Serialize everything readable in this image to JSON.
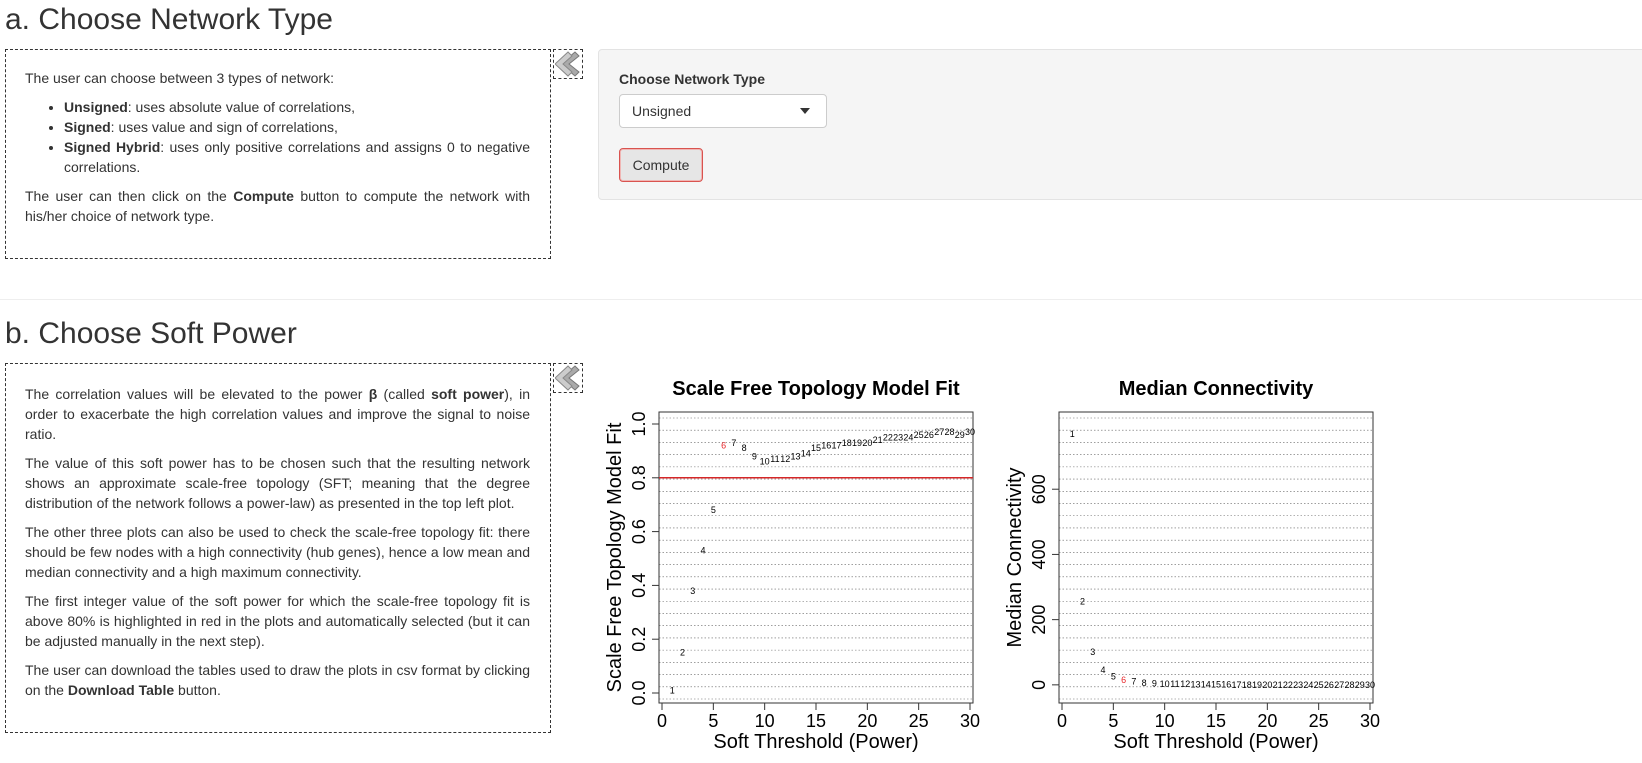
{
  "section_a": {
    "title": "a. Choose Network Type",
    "intro": "The user can choose between 3 types of network:",
    "bullets": [
      {
        "bold": "Unsigned",
        "text": ": uses absolute value of correlations,"
      },
      {
        "bold": "Signed",
        "text": ": uses value and sign of correlations,"
      },
      {
        "bold": "Signed Hybrid",
        "text": ": uses only positive correlations and assigns 0 to negative correlations."
      }
    ],
    "outro_pre": "The user can then click on the ",
    "outro_bold": "Compute",
    "outro_post": " button to compute the network with his/her choice of network type.",
    "control_label": "Choose Network Type",
    "select_value": "Unsigned",
    "compute_label": "Compute"
  },
  "section_b": {
    "title": "b. Choose Soft Power",
    "p1_pre": "The correlation values will be elevated to the power ",
    "p1_beta": "β",
    "p1_mid": " (called ",
    "p1_bold": "soft power",
    "p1_post": "), in order to exacerbate the high correlation values and improve the signal to noise ratio.",
    "p2": "The value of this soft power has to be chosen such that the resulting network shows an approximate scale-free topology (SFT; meaning that the degree distribution of the network follows a power-law) as presented in the top left plot.",
    "p3": "The other three plots can also be used to check the scale-free topology fit: there should be few nodes with a high connectivity (hub genes), hence a low mean and median connectivity and a high maximum connectivity.",
    "p4": "The first integer value of the soft power for which the scale-free topology fit is above 80% is highlighted in red in the plots and automatically selected (but it can be adjusted manually in the next step).",
    "p5_pre": "The user can download the tables used to draw the plots in csv format by clicking on the ",
    "p5_bold": "Download Table",
    "p5_post": " button."
  },
  "icons": {
    "collapse": "chevron-left-icon"
  },
  "colors": {
    "highlight": "#e8272b",
    "threshold_line": "#d62728",
    "button_border": "#d9534f"
  },
  "chart_data": [
    {
      "type": "scatter",
      "title": "Scale Free Topology Model Fit",
      "xlabel": "Soft Threshold (Power)",
      "ylabel": "Scale Free Topology Model Fit",
      "xlim": [
        0,
        30
      ],
      "ylim": [
        0,
        1.0
      ],
      "xticks": [
        "0",
        "5",
        "10",
        "15",
        "20",
        "25",
        "30"
      ],
      "yticks": [
        "0.0",
        "0.2",
        "0.4",
        "0.6",
        "0.8",
        "1.0"
      ],
      "x": [
        1,
        2,
        3,
        4,
        5,
        6,
        7,
        8,
        9,
        10,
        11,
        12,
        13,
        14,
        15,
        16,
        17,
        18,
        19,
        20,
        21,
        22,
        23,
        24,
        25,
        26,
        27,
        28,
        29,
        30
      ],
      "y": [
        0.01,
        0.15,
        0.38,
        0.53,
        0.68,
        0.92,
        0.93,
        0.91,
        0.88,
        0.86,
        0.87,
        0.87,
        0.88,
        0.89,
        0.91,
        0.92,
        0.92,
        0.93,
        0.93,
        0.93,
        0.94,
        0.95,
        0.95,
        0.95,
        0.96,
        0.96,
        0.97,
        0.97,
        0.96,
        0.97
      ],
      "highlight_x": 6,
      "hline": 0.8,
      "grid": true
    },
    {
      "type": "scatter",
      "title": "Median Connectivity",
      "xlabel": "Soft Threshold (Power)",
      "ylabel": "Median Connectivity",
      "xlim": [
        0,
        30
      ],
      "ylim": [
        -25,
        800
      ],
      "xticks": [
        "0",
        "5",
        "10",
        "15",
        "20",
        "25",
        "30"
      ],
      "yticks": [
        "0",
        "200",
        "400",
        "600"
      ],
      "x": [
        1,
        2,
        3,
        4,
        5,
        6,
        7,
        8,
        9,
        10,
        11,
        12,
        13,
        14,
        15,
        16,
        17,
        18,
        19,
        20,
        21,
        22,
        23,
        24,
        25,
        26,
        27,
        28,
        29,
        30
      ],
      "y": [
        770,
        255,
        100,
        45,
        25,
        15,
        10,
        6,
        4,
        3,
        2,
        2,
        1,
        1,
        1,
        1,
        0,
        0,
        0,
        0,
        0,
        0,
        0,
        0,
        0,
        0,
        0,
        0,
        0,
        0
      ],
      "highlight_x": 6,
      "grid": true
    }
  ]
}
